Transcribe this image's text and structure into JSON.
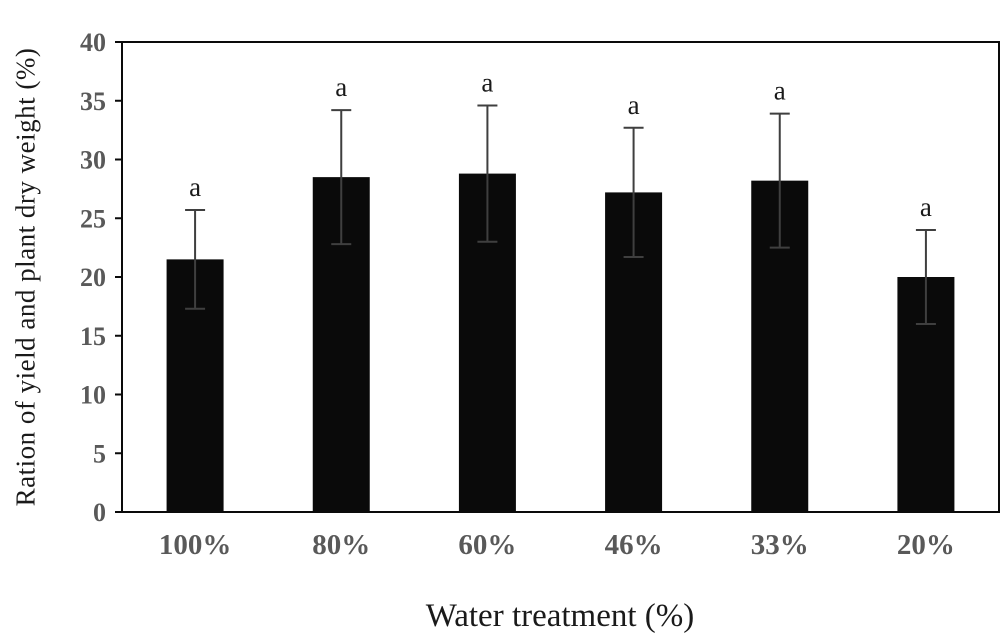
{
  "chart_data": {
    "type": "bar",
    "title": "",
    "categories": [
      "100%",
      "80%",
      "60%",
      "46%",
      "33%",
      "20%"
    ],
    "values": [
      21.5,
      28.5,
      28.8,
      27.2,
      28.2,
      20.0
    ],
    "errors": [
      4.2,
      5.7,
      5.8,
      5.5,
      5.7,
      4.0
    ],
    "sig_labels": [
      "a",
      "a",
      "a",
      "a",
      "a",
      "a"
    ],
    "xlabel": "Water treatment (%)",
    "ylabel": "Ration of yield and plant dry weight (%)",
    "ylim": [
      0,
      40
    ],
    "ytick_step": 5,
    "ytick_labels": [
      "0",
      "5",
      "10",
      "15",
      "20",
      "25",
      "30",
      "35",
      "40"
    ],
    "grid": false,
    "legend": "none",
    "colors": {
      "bar": "#0a0a0a",
      "error_bar": "#3f3f3f",
      "tick_label": "#595959",
      "axis_title": "#1a1a1a",
      "plot_border": "#0a0a0a",
      "background": "#ffffff"
    }
  }
}
